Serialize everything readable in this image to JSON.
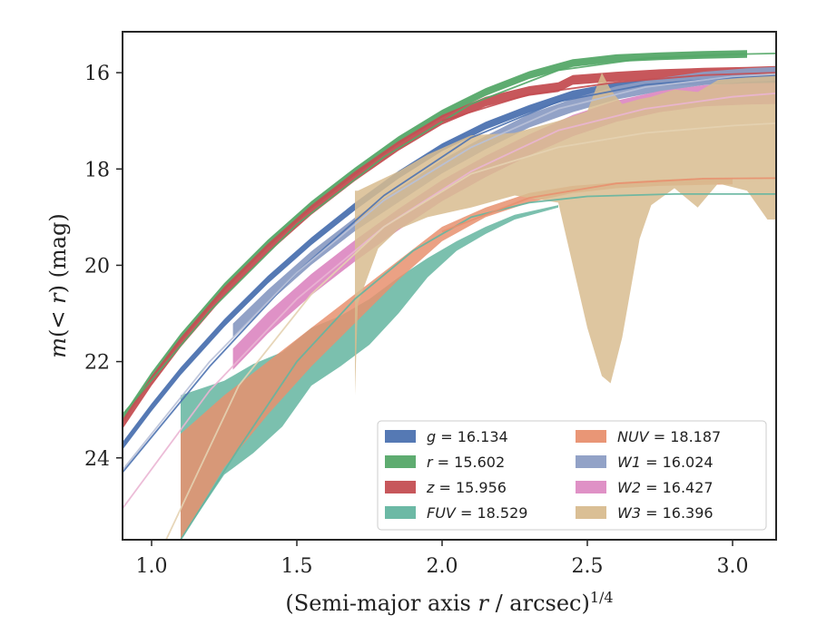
{
  "chart_data": {
    "type": "line",
    "xlabel": "(Semi-major axis r / arcsec)",
    "xlabel_parts": {
      "pre": "(Semi-major axis ",
      "var": "r",
      "post": " / arcsec)",
      "sup": "1/4"
    },
    "ylabel_parts": {
      "m": "m",
      "paren": "(",
      "lt": "< ",
      "r": "r",
      "close": ")",
      "unit": " (mag)"
    },
    "xlim": [
      0.9,
      3.15
    ],
    "ylim": [
      25.7,
      15.15
    ],
    "y_inverted": true,
    "x_ticks": [
      1.0,
      1.5,
      2.0,
      2.5,
      3.0
    ],
    "x_tick_labels": [
      "1.0",
      "1.5",
      "2.0",
      "2.5",
      "3.0"
    ],
    "y_ticks": [
      16,
      18,
      20,
      22,
      24
    ],
    "y_tick_labels": [
      "16",
      "18",
      "20",
      "22",
      "24"
    ],
    "grid": false,
    "legend": {
      "placement": "lower-right",
      "columns": 2
    },
    "series": [
      {
        "name": "g",
        "value": "16.134",
        "color": "#4c72b0",
        "kind": "band",
        "x": [
          0.9,
          1.0,
          1.1,
          1.25,
          1.4,
          1.55,
          1.7,
          1.85,
          2.0,
          2.15,
          2.3,
          2.45,
          2.6,
          2.75,
          2.9,
          3.05,
          3.15
        ],
        "y": [
          23.75,
          22.95,
          22.2,
          21.2,
          20.3,
          19.5,
          18.78,
          18.12,
          17.55,
          17.1,
          16.75,
          16.45,
          16.28,
          16.2,
          16.17,
          16.15,
          16.14
        ],
        "w": 0.08
      },
      {
        "name": "r",
        "value": "15.602",
        "color": "#55a868",
        "kind": "band",
        "x": [
          0.9,
          1.0,
          1.1,
          1.25,
          1.4,
          1.55,
          1.7,
          1.85,
          2.0,
          2.15,
          2.3,
          2.45,
          2.6,
          2.75,
          2.9,
          3.05
        ],
        "y": [
          23.2,
          22.3,
          21.5,
          20.45,
          19.55,
          18.75,
          18.05,
          17.4,
          16.85,
          16.4,
          16.05,
          15.8,
          15.7,
          15.66,
          15.63,
          15.61
        ],
        "w": 0.08
      },
      {
        "name": "z",
        "value": "15.956",
        "color": "#c44e52",
        "kind": "band",
        "x": [
          0.9,
          1.0,
          1.1,
          1.25,
          1.4,
          1.55,
          1.7,
          1.85,
          2.0,
          2.15,
          2.3,
          2.4,
          2.45,
          2.6,
          2.75,
          2.9,
          3.05,
          3.15
        ],
        "y": [
          23.3,
          22.4,
          21.6,
          20.55,
          19.65,
          18.85,
          18.15,
          17.52,
          16.98,
          16.6,
          16.38,
          16.3,
          16.15,
          16.08,
          16.03,
          16.0,
          15.98,
          15.96
        ],
        "w": 0.1
      },
      {
        "name": "FUV",
        "value": "18.529",
        "color": "#64b5a0",
        "kind": "band",
        "x": [
          1.1,
          1.25,
          1.35,
          1.45,
          1.55,
          1.65,
          1.75,
          1.85,
          1.95,
          2.05,
          2.15,
          2.25,
          2.4
        ],
        "lo": [
          22.7,
          22.4,
          22.05,
          21.8,
          21.3,
          21.05,
          20.7,
          20.25,
          19.85,
          19.5,
          19.2,
          18.95,
          18.75
        ],
        "hi": [
          25.7,
          24.35,
          23.9,
          23.35,
          22.5,
          22.1,
          21.65,
          21.0,
          20.25,
          19.7,
          19.35,
          19.05,
          18.8
        ]
      },
      {
        "name": "NUV",
        "value": "18.187",
        "color": "#e8906f",
        "kind": "band",
        "x": [
          1.1,
          1.25,
          1.4,
          1.55,
          1.7,
          1.85,
          2.0,
          2.15,
          2.3,
          2.45,
          2.6,
          2.75,
          2.9,
          3.0
        ],
        "lo": [
          23.5,
          22.7,
          22.0,
          21.3,
          20.6,
          19.9,
          19.2,
          18.8,
          18.5,
          18.35,
          18.28,
          18.22,
          18.2,
          18.2
        ],
        "hi": [
          25.7,
          24.2,
          23.1,
          22.1,
          21.2,
          20.3,
          19.5,
          19.0,
          18.7,
          18.5,
          18.4,
          18.35,
          18.33,
          18.32
        ]
      },
      {
        "name": "W1",
        "value": "16.024",
        "color": "#8c9dc4",
        "kind": "band",
        "x": [
          1.28,
          1.4,
          1.55,
          1.7,
          1.85,
          2.0,
          2.15,
          2.3,
          2.45,
          2.6,
          2.75,
          2.9,
          3.05,
          3.15
        ],
        "y": [
          21.35,
          20.65,
          19.85,
          19.15,
          18.55,
          17.95,
          17.45,
          17.0,
          16.68,
          16.42,
          16.25,
          16.12,
          16.05,
          16.02
        ],
        "w": 0.14
      },
      {
        "name": "W2",
        "value": "16.427",
        "color": "#dd8bc3",
        "kind": "band",
        "x": [
          1.28,
          1.4,
          1.55,
          1.7,
          1.85,
          2.0,
          2.15,
          2.3,
          2.45,
          2.6,
          2.75,
          2.9,
          3.05,
          3.15
        ],
        "y": [
          21.95,
          21.2,
          20.4,
          19.7,
          19.05,
          18.45,
          17.95,
          17.5,
          17.1,
          16.8,
          16.6,
          16.48,
          16.44,
          16.43
        ],
        "w": 0.22
      },
      {
        "name": "W3",
        "value": "16.396",
        "color": "#d8bc8f",
        "kind": "band",
        "x": [
          1.7,
          1.71,
          1.78,
          1.85,
          1.95,
          2.1,
          2.25,
          2.4,
          2.5,
          2.55,
          2.58,
          2.62,
          2.68,
          2.72,
          2.8,
          2.88,
          2.95,
          3.05,
          3.12,
          3.15
        ],
        "lo": [
          18.45,
          18.45,
          18.25,
          18.05,
          17.7,
          17.3,
          17.25,
          17.0,
          16.8,
          16.0,
          16.35,
          16.65,
          16.55,
          16.5,
          16.35,
          16.4,
          16.15,
          16.1,
          16.0,
          16.0
        ],
        "hi": [
          22.7,
          20.8,
          19.65,
          19.25,
          19.0,
          18.8,
          18.55,
          18.7,
          21.3,
          22.3,
          22.45,
          21.5,
          19.45,
          18.75,
          18.4,
          18.8,
          18.3,
          18.45,
          19.05,
          19.05
        ]
      }
    ],
    "model_curves": [
      {
        "color": "#4c72b0",
        "x": [
          0.9,
          1.2,
          1.5,
          1.8,
          2.1,
          2.4,
          2.7,
          3.0,
          3.15
        ],
        "y": [
          24.3,
          22.1,
          20.15,
          18.55,
          17.35,
          16.6,
          16.25,
          16.1,
          16.05
        ]
      },
      {
        "color": "#55a868",
        "x": [
          0.9,
          1.2,
          1.5,
          1.8,
          2.1,
          2.4,
          2.7,
          3.0,
          3.15
        ],
        "y": [
          23.1,
          20.95,
          19.15,
          17.75,
          16.65,
          15.95,
          15.7,
          15.62,
          15.6
        ]
      },
      {
        "color": "#c44e52",
        "x": [
          2.0,
          2.3,
          2.6,
          2.9,
          3.15
        ],
        "y": [
          17.0,
          16.45,
          16.2,
          16.05,
          16.0
        ]
      },
      {
        "color": "#64b5a0",
        "x": [
          1.1,
          1.3,
          1.5,
          1.7,
          1.9,
          2.1,
          2.3,
          2.5,
          2.8,
          3.15
        ],
        "y": [
          25.7,
          23.8,
          22.0,
          20.7,
          19.7,
          19.0,
          18.7,
          18.57,
          18.52,
          18.52
        ]
      },
      {
        "color": "#e8906f",
        "x": [
          2.0,
          2.3,
          2.6,
          2.9,
          3.15
        ],
        "y": [
          19.3,
          18.6,
          18.3,
          18.2,
          18.19
        ]
      },
      {
        "color": "#b9c1d8",
        "x": [
          0.9,
          1.2,
          1.5,
          1.8,
          2.1,
          2.4,
          2.7,
          3.0,
          3.15
        ],
        "y": [
          24.25,
          22.0,
          20.15,
          18.65,
          17.55,
          16.75,
          16.3,
          16.08,
          16.03
        ]
      },
      {
        "color": "#eab5d3",
        "x": [
          0.9,
          1.2,
          1.5,
          1.8,
          2.1,
          2.4,
          2.7,
          3.0,
          3.15
        ],
        "y": [
          25.05,
          22.6,
          20.7,
          19.2,
          18.05,
          17.2,
          16.75,
          16.5,
          16.43
        ]
      },
      {
        "color": "#e4d1b1",
        "x": [
          1.05,
          1.3,
          1.55,
          1.8,
          2.1,
          2.4,
          2.7,
          3.0,
          3.15
        ],
        "y": [
          25.7,
          22.5,
          20.6,
          19.2,
          18.1,
          17.55,
          17.25,
          17.1,
          17.05
        ]
      }
    ]
  }
}
